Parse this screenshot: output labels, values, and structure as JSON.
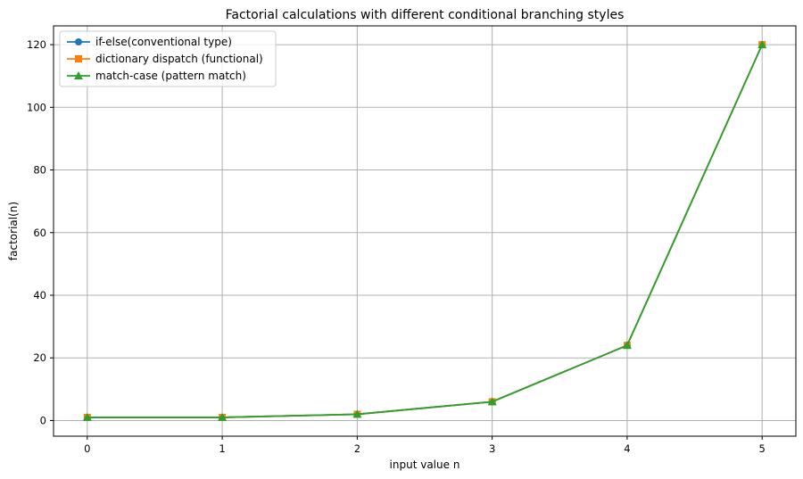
{
  "chart_data": {
    "type": "line",
    "title": "Factorial calculations with different conditional branching styles",
    "xlabel": "input value n",
    "ylabel": "factorial(n)",
    "x": [
      0,
      1,
      2,
      3,
      4,
      5
    ],
    "xticks": [
      "0",
      "1",
      "2",
      "3",
      "4",
      "5"
    ],
    "yticks": [
      "0",
      "20",
      "40",
      "60",
      "80",
      "100",
      "120"
    ],
    "xlim": [
      -0.25,
      5.25
    ],
    "ylim": [
      -5,
      126
    ],
    "grid": true,
    "legend_position": "top-left",
    "series": [
      {
        "name": "if-else(conventional type)",
        "values": [
          1,
          1,
          2,
          6,
          24,
          120
        ],
        "color": "#1f77b4",
        "marker": "circle"
      },
      {
        "name": "dictionary dispatch (functional)",
        "values": [
          1,
          1,
          2,
          6,
          24,
          120
        ],
        "color": "#ff7f0e",
        "marker": "square"
      },
      {
        "name": "match-case (pattern match)",
        "values": [
          1,
          1,
          2,
          6,
          24,
          120
        ],
        "color": "#2ca02c",
        "marker": "triangle"
      }
    ]
  }
}
